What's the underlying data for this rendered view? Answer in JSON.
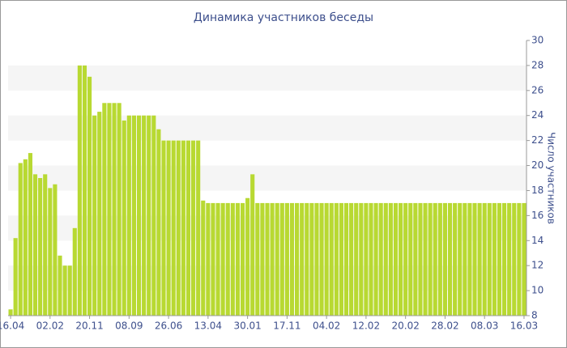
{
  "chart_data": {
    "type": "bar",
    "title": "Динамика участников беседы",
    "y_label": "Число участников",
    "categories": [
      "16.04",
      null,
      null,
      null,
      null,
      null,
      null,
      null,
      "02.02",
      null,
      null,
      null,
      null,
      null,
      null,
      null,
      "20.11",
      null,
      null,
      null,
      null,
      null,
      null,
      null,
      "08.09",
      null,
      null,
      null,
      null,
      null,
      null,
      null,
      "26.06",
      null,
      null,
      null,
      null,
      null,
      null,
      null,
      "13.04",
      null,
      null,
      null,
      null,
      null,
      null,
      null,
      "30.01",
      null,
      null,
      null,
      null,
      null,
      null,
      null,
      "17.11",
      null,
      null,
      null,
      null,
      null,
      null,
      null,
      "04.02",
      null,
      null,
      null,
      null,
      null,
      null,
      null,
      "12.02",
      null,
      null,
      null,
      null,
      null,
      null,
      null,
      "20.02",
      null,
      null,
      null,
      null,
      null,
      null,
      null,
      "28.02",
      null,
      null,
      null,
      null,
      null,
      null,
      null,
      "08.03",
      null,
      null,
      null,
      null,
      null,
      null,
      null,
      "16.03"
    ],
    "values": [
      8.5,
      14.2,
      20.2,
      20.5,
      21,
      19.3,
      19,
      19.3,
      18.2,
      18.5,
      12.8,
      12,
      12,
      15,
      28,
      28,
      27.1,
      24,
      24.3,
      25,
      25,
      25,
      25,
      23.6,
      24,
      24,
      24,
      24,
      24,
      24,
      22.9,
      22,
      22,
      22,
      22,
      22,
      22,
      22,
      22,
      17.2,
      17,
      17,
      17,
      17,
      17,
      17,
      17,
      17,
      17.4,
      19.3,
      17,
      17,
      17,
      17,
      17,
      17,
      17,
      17,
      17,
      17,
      17,
      17,
      17,
      17,
      17,
      17,
      17,
      17,
      17,
      17,
      17,
      17,
      17,
      17,
      17,
      17,
      17,
      17,
      17,
      17,
      17,
      17,
      17,
      17,
      17,
      17,
      17,
      17,
      17,
      17,
      17,
      17,
      17,
      17,
      17,
      17,
      17,
      17,
      17,
      17,
      17,
      17,
      17,
      17,
      17
    ],
    "color": "#b8d932",
    "ylim": [
      8,
      30
    ],
    "yticks": [
      8,
      10,
      12,
      14,
      16,
      18,
      20,
      22,
      24,
      26,
      28,
      30
    ],
    "grid": "bands",
    "y_axis_side": "right"
  }
}
